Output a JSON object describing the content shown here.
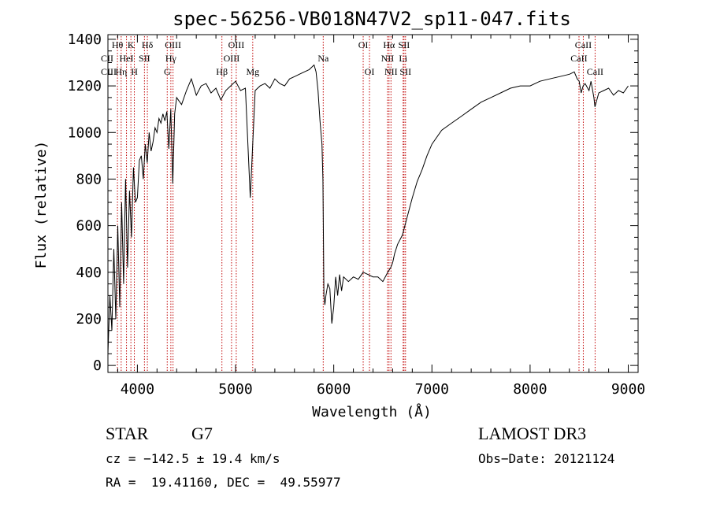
{
  "chart_data": {
    "type": "line",
    "title": "spec-56256-VB018N47V2_sp11-047.fits",
    "xlabel": "Wavelength (Å)",
    "ylabel": "Flux (relative)",
    "xlim": [
      3700,
      9100
    ],
    "ylim": [
      -30,
      1420
    ],
    "x_ticks": [
      4000,
      5000,
      6000,
      7000,
      8000,
      9000
    ],
    "y_ticks": [
      0,
      200,
      400,
      600,
      800,
      1000,
      1200,
      1400
    ],
    "series": [
      {
        "x": [
          3700,
          3720,
          3740,
          3760,
          3780,
          3800,
          3820,
          3840,
          3860,
          3880,
          3900,
          3920,
          3940,
          3960,
          3980,
          4000,
          4020,
          4040,
          4060,
          4080,
          4100,
          4120,
          4140,
          4160,
          4180,
          4200,
          4220,
          4240,
          4260,
          4280,
          4300,
          4320,
          4340,
          4360,
          4380,
          4400,
          4450,
          4500,
          4550,
          4600,
          4650,
          4700,
          4750,
          4800,
          4850,
          4900,
          4950,
          5000,
          5050,
          5100,
          5150,
          5200,
          5250,
          5300,
          5350,
          5400,
          5450,
          5500,
          5550,
          5600,
          5650,
          5700,
          5750,
          5800,
          5820,
          5840,
          5860,
          5880,
          5890,
          5900,
          5910,
          5920,
          5940,
          5960,
          5980,
          6000,
          6020,
          6040,
          6060,
          6080,
          6100,
          6150,
          6200,
          6250,
          6300,
          6350,
          6400,
          6450,
          6500,
          6550,
          6580,
          6600,
          6620,
          6650,
          6700,
          6750,
          6800,
          6850,
          6900,
          6950,
          7000,
          7100,
          7200,
          7300,
          7400,
          7500,
          7600,
          7700,
          7800,
          7900,
          8000,
          8100,
          8200,
          8300,
          8400,
          8450,
          8480,
          8500,
          8520,
          8540,
          8560,
          8600,
          8620,
          8650,
          8660,
          8700,
          8750,
          8800,
          8850,
          8900,
          8950,
          9000
        ],
        "y": [
          50,
          300,
          150,
          500,
          200,
          600,
          250,
          700,
          350,
          800,
          420,
          750,
          550,
          850,
          700,
          720,
          880,
          900,
          800,
          950,
          870,
          1000,
          920,
          960,
          1020,
          1000,
          1060,
          1040,
          1080,
          1050,
          1090,
          930,
          1100,
          780,
          1080,
          1150,
          1120,
          1180,
          1230,
          1160,
          1200,
          1210,
          1170,
          1190,
          1140,
          1180,
          1200,
          1220,
          1180,
          1190,
          720,
          1180,
          1200,
          1210,
          1190,
          1230,
          1210,
          1200,
          1230,
          1240,
          1250,
          1260,
          1270,
          1290,
          1260,
          1180,
          1050,
          950,
          800,
          300,
          260,
          300,
          350,
          330,
          180,
          250,
          380,
          300,
          390,
          320,
          380,
          360,
          380,
          370,
          400,
          390,
          380,
          380,
          360,
          400,
          420,
          440,
          480,
          520,
          560,
          640,
          720,
          790,
          840,
          900,
          950,
          1010,
          1040,
          1070,
          1100,
          1130,
          1150,
          1170,
          1190,
          1200,
          1200,
          1220,
          1230,
          1240,
          1250,
          1260,
          1230,
          1220,
          1170,
          1200,
          1210,
          1180,
          1220,
          1150,
          1110,
          1170,
          1180,
          1190,
          1160,
          1180,
          1170,
          1200
        ]
      }
    ],
    "line_annotations": [
      {
        "x": 3797,
        "label": "Hθ",
        "row": 0
      },
      {
        "x": 3835,
        "label": "Hη",
        "row": 2
      },
      {
        "x": 3889,
        "label": "HeI",
        "row": 1
      },
      {
        "x": 3934,
        "label": "K",
        "row": 0
      },
      {
        "x": 3969,
        "label": "H",
        "row": 2
      },
      {
        "x": 4072,
        "label": "SII",
        "row": 1
      },
      {
        "x": 4102,
        "label": "Hδ",
        "row": 0
      },
      {
        "x": 4304,
        "label": "G",
        "row": 2
      },
      {
        "x": 4341,
        "label": "Hγ",
        "row": 1
      },
      {
        "x": 4363,
        "label": "OIII",
        "row": 0
      },
      {
        "x": 4861,
        "label": "Hβ",
        "row": 2
      },
      {
        "x": 4959,
        "label": "OIII",
        "row": 1
      },
      {
        "x": 5007,
        "label": "OIII",
        "row": 0
      },
      {
        "x": 5175,
        "label": "Mg",
        "row": 2
      },
      {
        "x": 5893,
        "label": "Na",
        "row": 1
      },
      {
        "x": 6300,
        "label": "OI",
        "row": 0
      },
      {
        "x": 6364,
        "label": "OI",
        "row": 2
      },
      {
        "x": 6548,
        "label": "NII",
        "row": 1
      },
      {
        "x": 6563,
        "label": "Hα",
        "row": 0
      },
      {
        "x": 6583,
        "label": "NII",
        "row": 2
      },
      {
        "x": 6707,
        "label": "Li",
        "row": 1
      },
      {
        "x": 6716,
        "label": "SII",
        "row": 0
      },
      {
        "x": 6731,
        "label": "SII",
        "row": 2
      },
      {
        "x": 8498,
        "label": "CaII",
        "row": 1
      },
      {
        "x": 8542,
        "label": "CaII",
        "row": 0
      },
      {
        "x": 8662,
        "label": "CaII",
        "row": 2
      }
    ],
    "left_labels": [
      {
        "label": "CII",
        "row": 1
      },
      {
        "label": "CIII",
        "row": 2
      }
    ],
    "grid": false,
    "legend": "none"
  },
  "info": {
    "class_label": "STAR",
    "subclass": "G7",
    "survey": "LAMOST DR3",
    "cz": "cz = −142.5 ± 19.4 km/s",
    "obs_date": "Obs−Date: 20121124",
    "coords": "RA =  19.41160, DEC =  49.55977"
  },
  "colors": {
    "spectrum": "#000000",
    "line_markers": "#c00000",
    "axes": "#000000"
  }
}
